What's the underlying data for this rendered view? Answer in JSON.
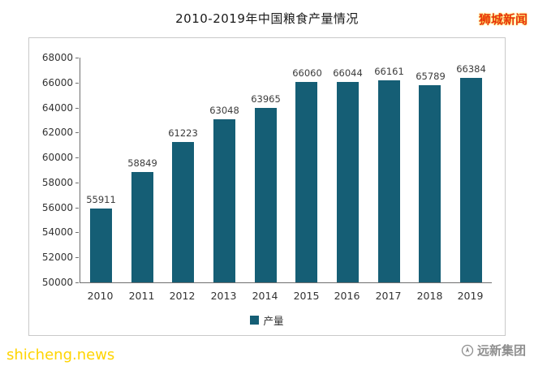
{
  "header": {
    "title": "2010-2019年中国粮食产量情况",
    "watermark": "狮城新闻"
  },
  "footer": {
    "site": "shicheng.news",
    "brand": "远新集团"
  },
  "colors": {
    "bar": "#155e75",
    "watermark": "#e8320f",
    "site": "#ffd400",
    "brand": "#8e8e8e"
  },
  "chart_data": {
    "type": "bar",
    "title": "2010-2019年中国粮食产量情况",
    "categories": [
      "2010",
      "2011",
      "2012",
      "2013",
      "2014",
      "2015",
      "2016",
      "2017",
      "2018",
      "2019"
    ],
    "values": [
      55911,
      58849,
      61223,
      63048,
      63965,
      66060,
      66044,
      66161,
      65789,
      66384
    ],
    "series_name": "产量",
    "legend": [
      "产量"
    ],
    "legend_position": "bottom",
    "xlabel": "",
    "ylabel": "",
    "ylim": [
      50000,
      68000
    ],
    "ytick_step": 2000,
    "grid": false,
    "bar_color": "#155e75"
  }
}
